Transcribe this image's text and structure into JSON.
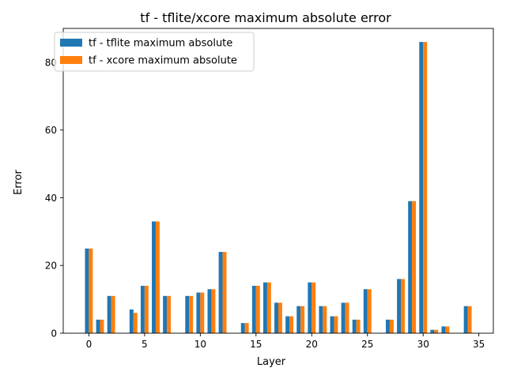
{
  "chart_data": {
    "type": "bar",
    "title": "tf - tflite/xcore maximum absolute error",
    "xlabel": "Layer",
    "ylabel": "Error",
    "xlim": [
      -2.3,
      36.3
    ],
    "ylim": [
      0,
      90
    ],
    "xticks": [
      0,
      5,
      10,
      15,
      20,
      25,
      30,
      35
    ],
    "yticks": [
      0,
      20,
      40,
      60,
      80
    ],
    "grid": false,
    "legend_position": "upper-left",
    "x": [
      0,
      1,
      2,
      4,
      5,
      6,
      7,
      9,
      10,
      11,
      12,
      14,
      15,
      16,
      17,
      18,
      19,
      20,
      21,
      22,
      23,
      24,
      25,
      27,
      28,
      29,
      30,
      31,
      32,
      34
    ],
    "series": [
      {
        "name": "tf - tflite maximum absolute",
        "color": "#1f77b4",
        "values": [
          25,
          4,
          11,
          7,
          14,
          33,
          11,
          11,
          12,
          13,
          24,
          3,
          14,
          15,
          9,
          5,
          8,
          15,
          8,
          5,
          9,
          4,
          13,
          4,
          16,
          39,
          86,
          1,
          2,
          8
        ]
      },
      {
        "name": "tf - xcore maximum absolute",
        "color": "#ff7f0e",
        "values": [
          25,
          4,
          11,
          6,
          14,
          33,
          11,
          11,
          12,
          13,
          24,
          3,
          14,
          15,
          9,
          5,
          8,
          15,
          8,
          5,
          9,
          4,
          13,
          4,
          16,
          39,
          86,
          1,
          2,
          8
        ]
      }
    ]
  }
}
